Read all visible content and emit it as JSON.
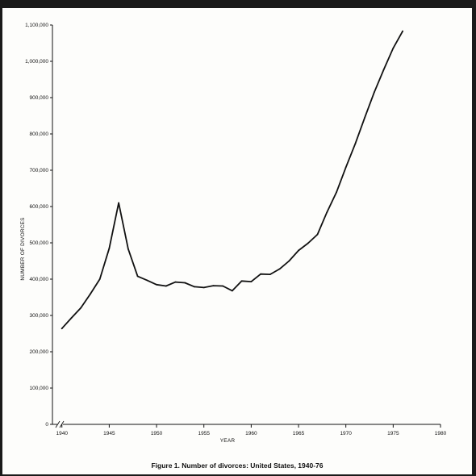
{
  "caption": "Figure 1.  Number of divorces:  United States, 1940-76",
  "chart_data": {
    "type": "line",
    "title": "",
    "xlabel": "YEAR",
    "ylabel": "NUMBER OF DIVORCES",
    "xlim": [
      1939,
      1980
    ],
    "ylim": [
      0,
      1100000
    ],
    "x_ticks": [
      1940,
      1945,
      1950,
      1955,
      1960,
      1965,
      1970,
      1975,
      1980
    ],
    "x_tick_labels": [
      "1940",
      "1945",
      "1950",
      "1955",
      "1960",
      "1965",
      "1970",
      "1975",
      "1980"
    ],
    "y_ticks": [
      0,
      100000,
      200000,
      300000,
      400000,
      500000,
      600000,
      700000,
      800000,
      900000,
      1000000,
      1100000
    ],
    "y_tick_labels": [
      "0",
      "100,000",
      "200,000",
      "300,000",
      "400,000",
      "500,000",
      "600,000",
      "700,000",
      "800,000",
      "900,000",
      "1,000,000",
      "1,100,000"
    ],
    "axis_break": true,
    "grid": false,
    "series": [
      {
        "x": [
          1940,
          1941,
          1942,
          1943,
          1944,
          1945,
          1946,
          1947,
          1948,
          1949,
          1950,
          1951,
          1952,
          1953,
          1954,
          1955,
          1956,
          1957,
          1958,
          1959,
          1960,
          1961,
          1962,
          1963,
          1964,
          1965,
          1966,
          1967,
          1968,
          1969,
          1970,
          1971,
          1972,
          1973,
          1974,
          1975,
          1976
        ],
        "y": [
          264000,
          293000,
          321000,
          359000,
          400000,
          485000,
          610000,
          483000,
          408000,
          397000,
          385000,
          381000,
          392000,
          390000,
          379000,
          377000,
          382000,
          381000,
          368000,
          395000,
          393000,
          414000,
          413000,
          428000,
          450000,
          479000,
          499000,
          523000,
          584000,
          639000,
          708000,
          773000,
          845000,
          915000,
          977000,
          1036000,
          1083000
        ]
      }
    ]
  }
}
